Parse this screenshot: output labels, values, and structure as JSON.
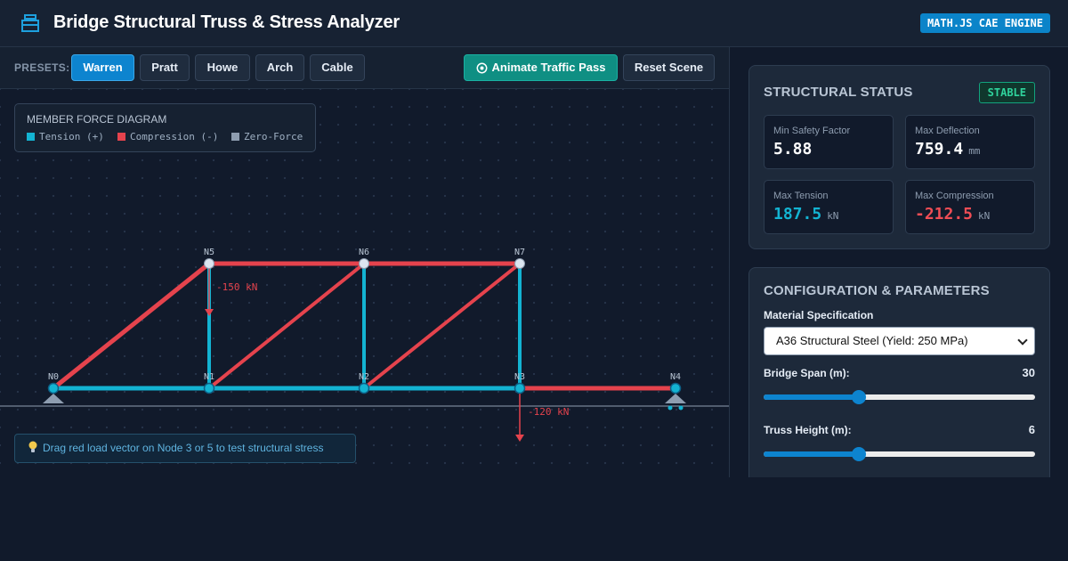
{
  "header": {
    "title": "Bridge Structural Truss & Stress Analyzer",
    "engine_badge": "MATH.JS CAE ENGINE",
    "logo_icon": "layers-icon"
  },
  "toolbar": {
    "presets_label": "PRESETS:",
    "presets": [
      {
        "label": "Warren",
        "active": true
      },
      {
        "label": "Pratt",
        "active": false
      },
      {
        "label": "Howe",
        "active": false
      },
      {
        "label": "Arch",
        "active": false
      },
      {
        "label": "Cable",
        "active": false
      }
    ],
    "animate_label": "Animate Traffic Pass",
    "animate_icon": "target-icon",
    "reset_label": "Reset Scene"
  },
  "legend": {
    "title": "MEMBER FORCE DIAGRAM",
    "items": [
      {
        "label": "Tension (+)",
        "color": "#13b3d2"
      },
      {
        "label": "Compression (-)",
        "color": "#e5434d"
      },
      {
        "label": "Zero-Force",
        "color": "#8e9db0"
      }
    ]
  },
  "truss": {
    "nodes": [
      "N0",
      "N1",
      "N2",
      "N3",
      "N4",
      "N5",
      "N6",
      "N7"
    ],
    "loads": [
      {
        "node": "N5",
        "label": "-150 kN"
      },
      {
        "node": "N3",
        "label": "-120 kN"
      }
    ],
    "colors": {
      "tension": "#13b3d2",
      "compression": "#e5434d",
      "load": "#e5434d",
      "node": "#dbe5f0"
    }
  },
  "tip": {
    "icon": "lightbulb-icon",
    "text": "Drag red load vector on Node 3 or 5 to test structural stress"
  },
  "status": {
    "title": "STRUCTURAL STATUS",
    "badge": "STABLE",
    "metrics": {
      "min_safety": {
        "label": "Min Safety Factor",
        "value": "5.88",
        "unit": ""
      },
      "max_deflection": {
        "label": "Max Deflection",
        "value": "759.4",
        "unit": "mm"
      },
      "max_tension": {
        "label": "Max Tension",
        "value": "187.5",
        "unit": "kN",
        "color": "#13b3d2"
      },
      "max_compression": {
        "label": "Max Compression",
        "value": "-212.5",
        "unit": "kN",
        "color": "#ef4d55"
      }
    }
  },
  "config": {
    "title": "CONFIGURATION & PARAMETERS",
    "material_label": "Material Specification",
    "material_value": "A36 Structural Steel (Yield: 250 MPa)",
    "span_label": "Bridge Span (m):",
    "span_value": "30",
    "span_fraction": 0.35,
    "height_label": "Truss Height (m):",
    "height_value": "6",
    "height_fraction": 0.35
  }
}
